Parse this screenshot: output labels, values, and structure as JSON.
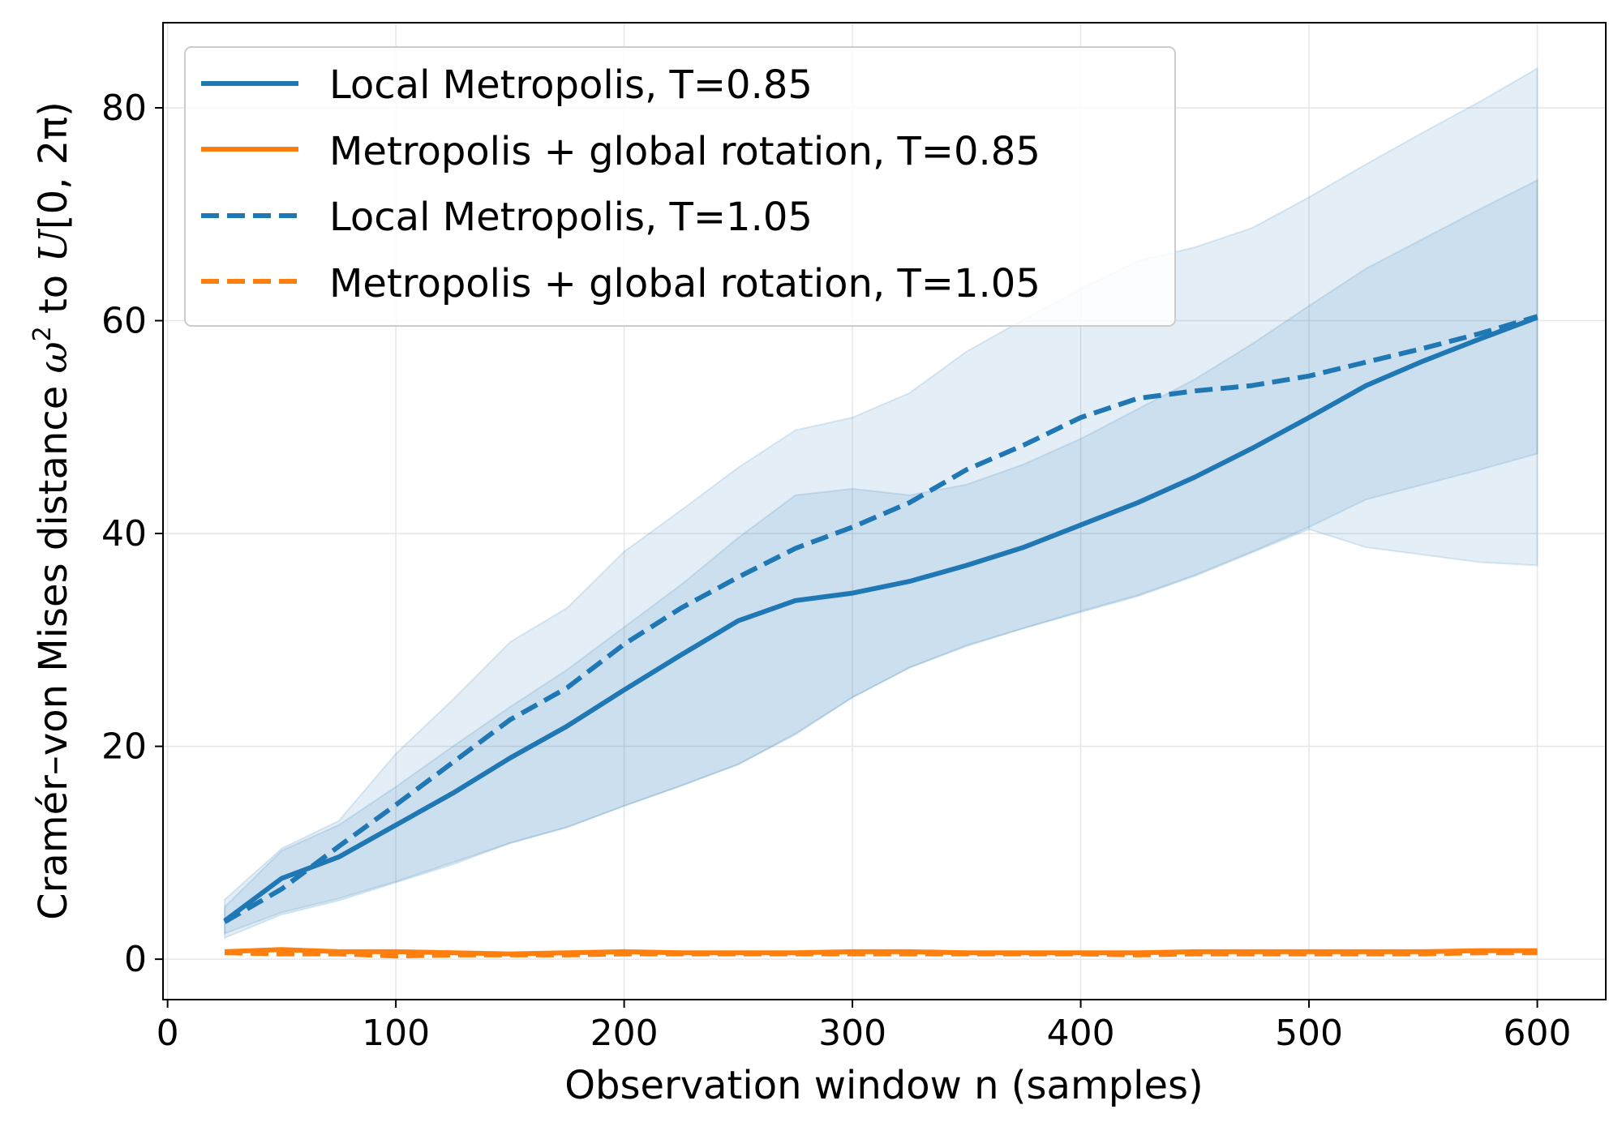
{
  "chart_data": {
    "type": "line",
    "xlabel": "Observation window n (samples)",
    "ylabel_prefix": "Cramér–von Mises distance ",
    "ylabel_omega": "ω",
    "ylabel_sup": "2",
    "ylabel_mid": " to ",
    "ylabel_U": "U",
    "ylabel_suffix": "[0, 2π)",
    "xlim": [
      -2,
      630
    ],
    "ylim": [
      -3.8,
      88
    ],
    "xticks": [
      0,
      100,
      200,
      300,
      400,
      500,
      600
    ],
    "yticks": [
      0,
      20,
      40,
      60,
      80
    ],
    "grid": true,
    "legend_position": "top-left",
    "colors": {
      "blue": "#1f77b4",
      "orange": "#ff7f0e"
    },
    "x": [
      25,
      50,
      75,
      100,
      125,
      150,
      175,
      200,
      225,
      250,
      275,
      300,
      325,
      350,
      375,
      400,
      425,
      450,
      475,
      500,
      525,
      550,
      575,
      600
    ],
    "series": [
      {
        "name": "Local Metropolis, T=0.85",
        "color": "#1f77b4",
        "dash": "solid",
        "values": [
          3.6,
          7.6,
          9.6,
          12.6,
          15.6,
          18.9,
          21.9,
          25.3,
          28.6,
          31.8,
          33.7,
          34.4,
          35.5,
          37.0,
          38.7,
          40.8,
          42.9,
          45.3,
          48.0,
          50.9,
          53.9,
          56.2,
          58.3,
          60.3
        ],
        "band": {
          "lower": [
            2.4,
            4.4,
            5.7,
            7.3,
            9.1,
            10.9,
            12.4,
            14.4,
            16.3,
            18.3,
            21.2,
            24.6,
            27.4,
            29.5,
            31.1,
            32.7,
            34.2,
            36.1,
            38.3,
            40.6,
            43.2,
            44.6,
            46.0,
            47.5
          ],
          "upper": [
            4.9,
            10.2,
            12.6,
            16.2,
            20.0,
            23.7,
            27.2,
            31.2,
            35.2,
            39.6,
            43.6,
            44.2,
            43.6,
            44.6,
            46.5,
            48.9,
            51.7,
            54.5,
            57.8,
            61.4,
            64.9,
            67.7,
            70.5,
            73.2
          ]
        }
      },
      {
        "name": "Metropolis + global rotation, T=0.85",
        "color": "#ff7f0e",
        "dash": "solid",
        "values": [
          0.7,
          0.9,
          0.7,
          0.7,
          0.6,
          0.5,
          0.6,
          0.7,
          0.6,
          0.6,
          0.6,
          0.7,
          0.7,
          0.6,
          0.6,
          0.6,
          0.6,
          0.7,
          0.7,
          0.7,
          0.7,
          0.7,
          0.8,
          0.8
        ]
      },
      {
        "name": "Local Metropolis, T=1.05",
        "color": "#1f77b4",
        "dash": "dashed",
        "values": [
          3.5,
          6.6,
          10.6,
          14.5,
          18.5,
          22.5,
          25.5,
          29.6,
          33.0,
          35.9,
          38.6,
          40.6,
          42.9,
          46.0,
          48.3,
          50.9,
          52.7,
          53.4,
          53.9,
          54.8,
          56.1,
          57.4,
          58.8,
          60.4
        ],
        "band": {
          "lower": [
            2.0,
            4.2,
            5.5,
            7.2,
            8.9,
            10.9,
            12.4,
            14.4,
            16.3,
            18.3,
            21.1,
            24.6,
            27.4,
            29.4,
            31.1,
            32.6,
            34.1,
            36.0,
            38.2,
            40.4,
            38.7,
            38.0,
            37.3,
            37.0
          ],
          "upper": [
            5.6,
            10.4,
            13.0,
            19.3,
            24.4,
            29.8,
            33.0,
            38.3,
            42.2,
            46.2,
            49.7,
            50.9,
            53.2,
            57.1,
            60.1,
            63.0,
            65.6,
            66.9,
            68.7,
            71.6,
            74.7,
            77.7,
            80.6,
            83.7
          ]
        }
      },
      {
        "name": "Metropolis + global rotation, T=1.05",
        "color": "#ff7f0e",
        "dash": "dashed",
        "values": [
          0.6,
          0.5,
          0.5,
          0.3,
          0.4,
          0.4,
          0.4,
          0.5,
          0.5,
          0.5,
          0.5,
          0.5,
          0.5,
          0.5,
          0.5,
          0.5,
          0.4,
          0.5,
          0.5,
          0.5,
          0.5,
          0.5,
          0.6,
          0.6
        ]
      }
    ]
  }
}
